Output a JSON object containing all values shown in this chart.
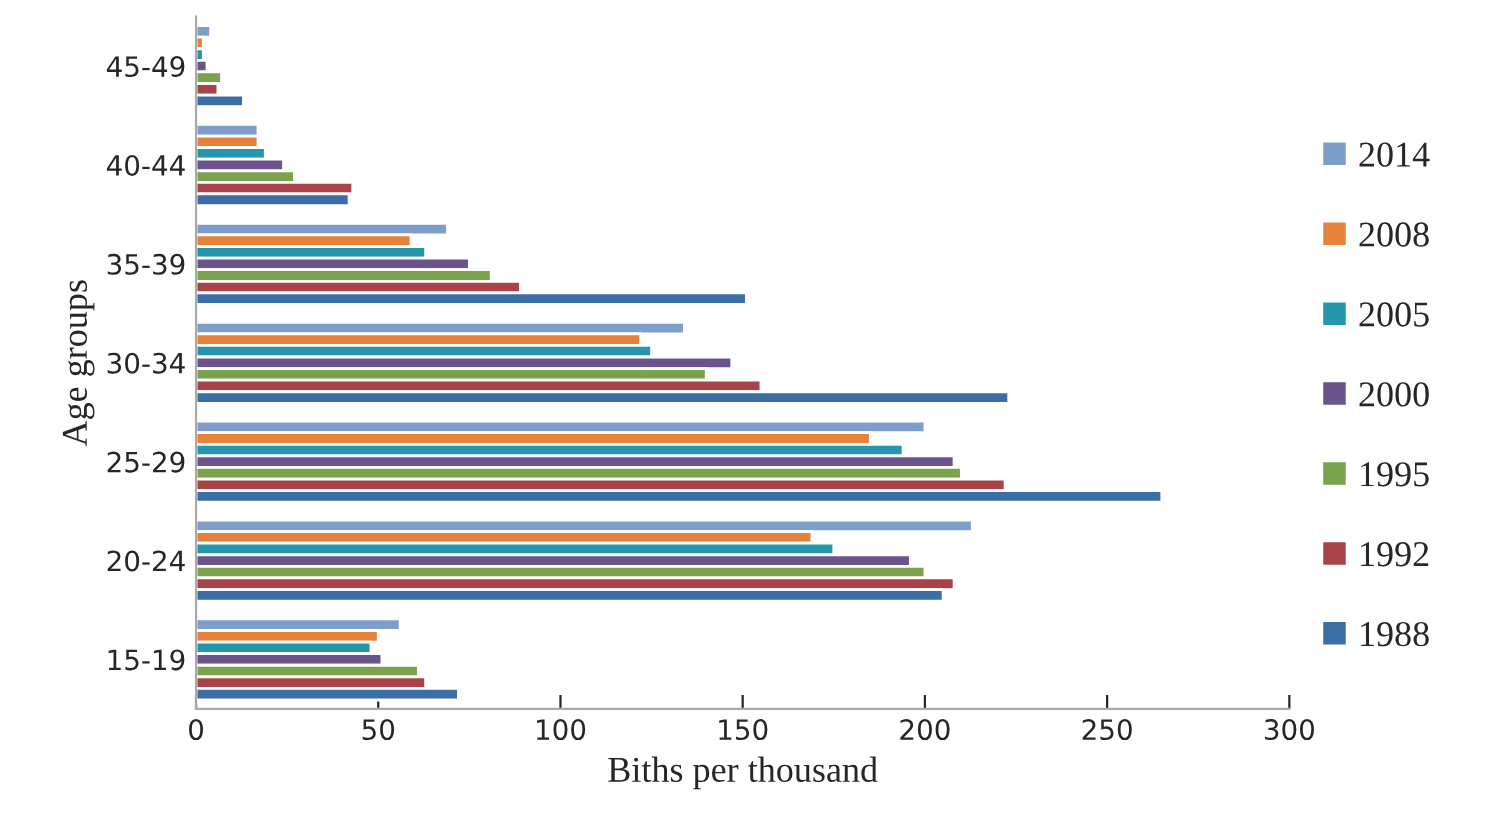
{
  "chart_data": {
    "type": "bar",
    "orientation": "horizontal",
    "xlabel": "Biths per thousand",
    "ylabel": "Age groups",
    "categories": [
      "45-49",
      "40-44",
      "35-39",
      "30-34",
      "25-29",
      "20-24",
      "15-19"
    ],
    "series": [
      {
        "name": "2014",
        "color": "#7f9dc9",
        "values": [
          4,
          17,
          69,
          134,
          200,
          213,
          56
        ]
      },
      {
        "name": "2008",
        "color": "#e6823a",
        "values": [
          2,
          17,
          59,
          122,
          185,
          169,
          50
        ]
      },
      {
        "name": "2005",
        "color": "#2596ab",
        "values": [
          2,
          19,
          63,
          125,
          194,
          175,
          48
        ]
      },
      {
        "name": "2000",
        "color": "#6b548b",
        "values": [
          3,
          24,
          75,
          147,
          208,
          196,
          51
        ]
      },
      {
        "name": "1995",
        "color": "#7ba34e",
        "values": [
          7,
          27,
          81,
          140,
          210,
          200,
          61
        ]
      },
      {
        "name": "1992",
        "color": "#a8434a",
        "values": [
          6,
          43,
          89,
          155,
          222,
          208,
          63
        ]
      },
      {
        "name": "1988",
        "color": "#3b6ea5",
        "values": [
          13,
          42,
          151,
          223,
          265,
          205,
          72
        ]
      }
    ],
    "xlim": [
      0,
      300
    ],
    "xticks": [
      0,
      50,
      100,
      150,
      200,
      250,
      300
    ],
    "grid": false,
    "legend": "right"
  }
}
